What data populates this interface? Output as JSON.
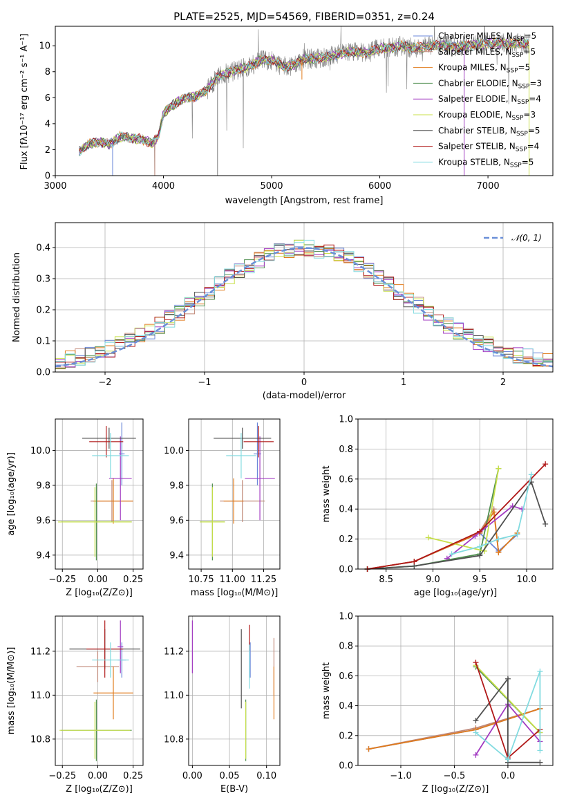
{
  "page": {
    "title": "PLATE=2525, MJD=54569, FIBERID=0351, z=0.24"
  },
  "series_styles": [
    {
      "name": "Chabrier MILES, N_SSP=5",
      "color": "#6a86d8"
    },
    {
      "name": "Salpeter MILES, N_SSP=5",
      "color": "#c08878"
    },
    {
      "name": "Kroupa MILES, N_SSP=5",
      "color": "#e07b1c"
    },
    {
      "name": "Chabrier ELODIE, N_SSP=3",
      "color": "#4f8f4f"
    },
    {
      "name": "Salpeter ELODIE, N_SSP=4",
      "color": "#a23bc2"
    },
    {
      "name": "Kroupa ELODIE, N_SSP=3",
      "color": "#c8e04a"
    },
    {
      "name": "Chabrier STELIB, N_SSP=5",
      "color": "#505050"
    },
    {
      "name": "Salpeter STELIB, N_SSP=4",
      "color": "#b01818"
    },
    {
      "name": "Kroupa STELIB, N_SSP=5",
      "color": "#82dbe0"
    }
  ],
  "chart_data": [
    {
      "id": "spectrum",
      "type": "line",
      "title": "PLATE=2525, MJD=54569, FIBERID=0351, z=0.24",
      "xlabel": "wavelength [Angstrom, rest frame]",
      "ylabel": "Flux [fλ10⁻¹⁷ erg cm⁻² s⁻¹ A⁻¹]",
      "xlim": [
        3000,
        7600
      ],
      "ylim": [
        0,
        11.5
      ],
      "xticks": [
        3000,
        4000,
        5000,
        6000,
        7000
      ],
      "yticks": [
        0,
        2,
        4,
        6,
        8,
        10
      ],
      "legend": {
        "position": "top-right",
        "entries": [
          {
            "pre": "Chabrier MILES, N",
            "sub": "SSP",
            "post": "=5"
          },
          {
            "pre": "Salpeter MILES, N",
            "sub": "SSP",
            "post": "=5"
          },
          {
            "pre": "Kroupa MILES, N",
            "sub": "SSP",
            "post": "=5"
          },
          {
            "pre": "Chabrier ELODIE, N",
            "sub": "SSP",
            "post": "=3"
          },
          {
            "pre": "Salpeter ELODIE, N",
            "sub": "SSP",
            "post": "=4"
          },
          {
            "pre": "Kroupa ELODIE, N",
            "sub": "SSP",
            "post": "=3"
          },
          {
            "pre": "Chabrier STELIB, N",
            "sub": "SSP",
            "post": "=5"
          },
          {
            "pre": "Salpeter STELIB, N",
            "sub": "SSP",
            "post": "=4"
          },
          {
            "pre": "Kroupa STELIB, N",
            "sub": "SSP",
            "post": "=5"
          }
        ]
      },
      "continuum": [
        [
          3220,
          1.8
        ],
        [
          3300,
          2.4
        ],
        [
          3400,
          2.6
        ],
        [
          3500,
          2.4
        ],
        [
          3600,
          3.0
        ],
        [
          3700,
          2.9
        ],
        [
          3800,
          2.8
        ],
        [
          3900,
          2.5
        ],
        [
          3950,
          3.0
        ],
        [
          4000,
          4.8
        ],
        [
          4100,
          5.5
        ],
        [
          4200,
          6.0
        ],
        [
          4300,
          6.1
        ],
        [
          4400,
          6.6
        ],
        [
          4500,
          7.6
        ],
        [
          4600,
          7.9
        ],
        [
          4700,
          8.2
        ],
        [
          4800,
          8.4
        ],
        [
          4900,
          8.9
        ],
        [
          5000,
          8.9
        ],
        [
          5100,
          8.4
        ],
        [
          5200,
          8.5
        ],
        [
          5300,
          9.0
        ],
        [
          5400,
          9.0
        ],
        [
          5500,
          9.1
        ],
        [
          5600,
          9.3
        ],
        [
          5700,
          9.5
        ],
        [
          5800,
          9.5
        ],
        [
          5900,
          9.5
        ],
        [
          6000,
          9.8
        ],
        [
          6100,
          9.8
        ],
        [
          6200,
          10.0
        ],
        [
          6300,
          9.8
        ],
        [
          6400,
          9.9
        ],
        [
          6500,
          10.0
        ],
        [
          6600,
          10.0
        ],
        [
          6700,
          9.9
        ],
        [
          6800,
          10.0
        ],
        [
          6900,
          10.1
        ],
        [
          7000,
          10.2
        ],
        [
          7100,
          10.2
        ],
        [
          7200,
          10.1
        ],
        [
          7300,
          10.2
        ],
        [
          7380,
          10.1
        ]
      ]
    },
    {
      "id": "residual_hist",
      "type": "line",
      "xlabel": "(data-model)/error",
      "ylabel": "Normed distribution",
      "xlim": [
        -2.5,
        2.5
      ],
      "ylim": [
        0,
        0.48
      ],
      "xticks": [
        -2,
        -1,
        0,
        1,
        2
      ],
      "yticks": [
        0.0,
        0.1,
        0.2,
        0.3,
        0.4
      ],
      "legend": {
        "position": "top-right",
        "label": "𝒩(0, 1)"
      },
      "bin_edges_range": [
        -2.5,
        2.5
      ],
      "bins": 50,
      "gaussian": {
        "mean": 0,
        "sigma": 1,
        "color": "#6a8fd8"
      }
    },
    {
      "id": "age_vs_Z",
      "type": "scatter",
      "xlabel": "Z [log₁₀(Z/Z⊙)]",
      "ylabel": "age  [log₁₀(age/yr)]",
      "xlim": [
        -0.3,
        0.32
      ],
      "ylim": [
        9.32,
        10.18
      ],
      "xticks": [
        -0.25,
        0.0,
        0.25
      ],
      "yticks": [
        9.4,
        9.6,
        9.8,
        10.0
      ],
      "points": [
        {
          "s": 0,
          "x": 0.17,
          "y": 9.98,
          "ex": 0.02,
          "ey": 0.18
        },
        {
          "s": 1,
          "x": 0.1,
          "y": 9.71,
          "ex": 0.15,
          "ey": 0.12
        },
        {
          "s": 2,
          "x": 0.11,
          "y": 9.71,
          "ex": 0.14,
          "ey": 0.13
        },
        {
          "s": 3,
          "x": -0.01,
          "y": 9.59,
          "ex": 0.25,
          "ey": 0.22
        },
        {
          "s": 4,
          "x": 0.16,
          "y": 9.84,
          "ex": 0.08,
          "ey": 0.24
        },
        {
          "s": 5,
          "x": -0.02,
          "y": 9.59,
          "ex": 0.26,
          "ey": 0.2
        },
        {
          "s": 6,
          "x": 0.08,
          "y": 10.07,
          "ex": 0.19,
          "ey": 0.06
        },
        {
          "s": 7,
          "x": 0.06,
          "y": 10.05,
          "ex": 0.12,
          "ey": 0.09
        },
        {
          "s": 8,
          "x": 0.09,
          "y": 9.97,
          "ex": 0.13,
          "ey": 0.13
        }
      ]
    },
    {
      "id": "age_vs_mass",
      "type": "scatter",
      "xlabel": "mass [log₁₀(M/M⊙)]",
      "ylabel": "",
      "xlim": [
        10.65,
        11.38
      ],
      "ylim": [
        9.32,
        10.18
      ],
      "xticks": [
        10.75,
        11.0,
        11.25
      ],
      "yticks": [
        9.4,
        9.6,
        9.8,
        10.0
      ],
      "points": [
        {
          "s": 0,
          "x": 11.2,
          "y": 9.98,
          "ex": 0.03,
          "ey": 0.18
        },
        {
          "s": 1,
          "x": 11.08,
          "y": 9.71,
          "ex": 0.18,
          "ey": 0.12
        },
        {
          "s": 2,
          "x": 11.01,
          "y": 9.71,
          "ex": 0.08,
          "ey": 0.13
        },
        {
          "s": 3,
          "x": 10.84,
          "y": 9.59,
          "ex": 0.1,
          "ey": 0.22
        },
        {
          "s": 4,
          "x": 11.22,
          "y": 9.84,
          "ex": 0.12,
          "ey": 0.24
        },
        {
          "s": 5,
          "x": 10.84,
          "y": 9.59,
          "ex": 0.1,
          "ey": 0.2
        },
        {
          "s": 6,
          "x": 11.08,
          "y": 10.07,
          "ex": 0.23,
          "ey": 0.06
        },
        {
          "s": 7,
          "x": 11.21,
          "y": 10.05,
          "ex": 0.12,
          "ey": 0.09
        },
        {
          "s": 8,
          "x": 11.07,
          "y": 9.97,
          "ex": 0.12,
          "ey": 0.13
        }
      ]
    },
    {
      "id": "mass_weight_vs_age",
      "type": "line",
      "xlabel": "age  [log₁₀(age/yr)]",
      "ylabel": "mass weight",
      "xlim": [
        8.2,
        10.28
      ],
      "ylim": [
        0.0,
        1.0
      ],
      "xticks": [
        8.5,
        9.0,
        9.5,
        10.0
      ],
      "yticks": [
        0.0,
        0.2,
        0.4,
        0.6,
        0.8,
        1.0
      ],
      "series": [
        {
          "s": 0,
          "points": [
            [
              8.3,
              0.0
            ],
            [
              8.8,
              0.05
            ],
            [
              9.5,
              0.24
            ],
            [
              9.7,
              0.12
            ],
            [
              9.9,
              0.23
            ]
          ]
        },
        {
          "s": 1,
          "points": [
            [
              8.3,
              0.0
            ],
            [
              8.8,
              0.05
            ],
            [
              9.5,
              0.25
            ],
            [
              9.65,
              0.4
            ],
            [
              9.7,
              0.11
            ]
          ]
        },
        {
          "s": 2,
          "points": [
            [
              8.3,
              0.0
            ],
            [
              8.8,
              0.05
            ],
            [
              9.5,
              0.24
            ],
            [
              9.65,
              0.38
            ],
            [
              9.7,
              0.11
            ],
            [
              9.9,
              0.24
            ]
          ]
        },
        {
          "s": 3,
          "points": [
            [
              8.3,
              0.0
            ],
            [
              8.8,
              0.02
            ],
            [
              9.5,
              0.1
            ],
            [
              9.7,
              0.67
            ]
          ]
        },
        {
          "s": 4,
          "points": [
            [
              9.15,
              0.07
            ],
            [
              9.45,
              0.22
            ],
            [
              9.85,
              0.42
            ],
            [
              9.95,
              0.4
            ]
          ]
        },
        {
          "s": 5,
          "points": [
            [
              8.95,
              0.21
            ],
            [
              9.55,
              0.12
            ],
            [
              9.7,
              0.67
            ]
          ]
        },
        {
          "s": 6,
          "points": [
            [
              8.3,
              0.0
            ],
            [
              8.8,
              0.02
            ],
            [
              9.5,
              0.09
            ],
            [
              10.05,
              0.58
            ],
            [
              10.2,
              0.3
            ]
          ]
        },
        {
          "s": 7,
          "points": [
            [
              8.3,
              0.0
            ],
            [
              8.8,
              0.05
            ],
            [
              9.5,
              0.25
            ],
            [
              10.2,
              0.7
            ]
          ]
        },
        {
          "s": 8,
          "points": [
            [
              9.2,
              0.1
            ],
            [
              9.5,
              0.15
            ],
            [
              9.7,
              0.2
            ],
            [
              9.9,
              0.23
            ],
            [
              10.05,
              0.63
            ]
          ]
        }
      ]
    },
    {
      "id": "mass_vs_Z",
      "type": "scatter",
      "xlabel": "Z [log₁₀(Z/Z⊙)]",
      "ylabel": "mass [log₁₀(M/M⊙)]",
      "xlim": [
        -0.3,
        0.32
      ],
      "ylim": [
        10.68,
        11.36
      ],
      "xticks": [
        -0.25,
        0.0,
        0.25
      ],
      "yticks": [
        10.8,
        11.0,
        11.2
      ],
      "points": [
        {
          "s": 0,
          "x": 0.17,
          "y": 11.16,
          "ex": 0.03,
          "ey": 0.08
        },
        {
          "s": 1,
          "x": 0.0,
          "y": 11.13,
          "ex": 0.15,
          "ey": 0.07
        },
        {
          "s": 2,
          "x": 0.11,
          "y": 11.01,
          "ex": 0.14,
          "ey": 0.12
        },
        {
          "s": 3,
          "x": -0.01,
          "y": 10.84,
          "ex": 0.25,
          "ey": 0.14
        },
        {
          "s": 4,
          "x": 0.16,
          "y": 11.22,
          "ex": 0.02,
          "ey": 0.12
        },
        {
          "s": 5,
          "x": -0.02,
          "y": 10.84,
          "ex": 0.25,
          "ey": 0.13
        },
        {
          "s": 6,
          "x": 0.05,
          "y": 11.21,
          "ex": 0.25,
          "ey": 0.09
        },
        {
          "s": 7,
          "x": 0.05,
          "y": 11.21,
          "ex": 0.13,
          "ey": 0.13
        },
        {
          "s": 8,
          "x": 0.09,
          "y": 11.16,
          "ex": 0.13,
          "ey": 0.08
        }
      ]
    },
    {
      "id": "mass_vs_ebv",
      "type": "scatter",
      "xlabel": "E(B-V)",
      "ylabel": "",
      "xlim": [
        -0.005,
        0.118
      ],
      "ylim": [
        10.68,
        11.36
      ],
      "xticks": [
        0.0,
        0.05,
        0.1
      ],
      "yticks": [
        10.8,
        11.0,
        11.2
      ],
      "points": [
        {
          "s": 0,
          "x": 0.078,
          "y": 11.16,
          "ex": 0,
          "ey": 0.08
        },
        {
          "s": 1,
          "x": 0.11,
          "y": 11.13,
          "ex": 0,
          "ey": 0.13
        },
        {
          "s": 2,
          "x": 0.11,
          "y": 11.01,
          "ex": 0,
          "ey": 0.12
        },
        {
          "s": 3,
          "x": 0.072,
          "y": 10.84,
          "ex": 0,
          "ey": 0.14
        },
        {
          "s": 4,
          "x": 0.0,
          "y": 11.22,
          "ex": 0,
          "ey": 0.12
        },
        {
          "s": 5,
          "x": 0.072,
          "y": 10.84,
          "ex": 0,
          "ey": 0.13
        },
        {
          "s": 6,
          "x": 0.066,
          "y": 11.12,
          "ex": 0,
          "ey": 0.18
        },
        {
          "s": 7,
          "x": 0.077,
          "y": 11.26,
          "ex": 0,
          "ey": 0.06
        },
        {
          "s": 8,
          "x": 0.077,
          "y": 11.13,
          "ex": 0,
          "ey": 0.1
        }
      ]
    },
    {
      "id": "mass_weight_vs_Z",
      "type": "line",
      "xlabel": "Z [log₁₀(Z/Z⊙)]",
      "ylabel": "mass weight",
      "xlim": [
        -1.4,
        0.42
      ],
      "ylim": [
        0.0,
        1.0
      ],
      "xticks": [
        -1.0,
        -0.5,
        0.0
      ],
      "yticks": [
        0.0,
        0.2,
        0.4,
        0.6,
        0.8,
        1.0
      ],
      "series": [
        {
          "s": 0,
          "points": [
            [
              -1.3,
              0.11
            ],
            [
              -0.3,
              0.24
            ],
            [
              0.3,
              0.38
            ]
          ]
        },
        {
          "s": 1,
          "points": [
            [
              -1.3,
              0.11
            ],
            [
              -0.3,
              0.25
            ],
            [
              0.3,
              0.38
            ]
          ]
        },
        {
          "s": 2,
          "points": [
            [
              -1.3,
              0.11
            ],
            [
              -0.3,
              0.24
            ],
            [
              0.3,
              0.38
            ]
          ]
        },
        {
          "s": 3,
          "points": [
            [
              -0.3,
              0.66
            ],
            [
              0.3,
              0.22
            ]
          ]
        },
        {
          "s": 4,
          "points": [
            [
              -0.3,
              0.07
            ],
            [
              0.0,
              0.41
            ],
            [
              0.3,
              0.16
            ]
          ]
        },
        {
          "s": 5,
          "points": [
            [
              -0.3,
              0.67
            ],
            [
              0.3,
              0.22
            ]
          ]
        },
        {
          "s": 6,
          "points": [
            [
              -0.3,
              0.3
            ],
            [
              0.0,
              0.58
            ],
            [
              0.0,
              0.02
            ],
            [
              0.3,
              0.02
            ]
          ]
        },
        {
          "s": 7,
          "points": [
            [
              -0.3,
              0.69
            ],
            [
              0.0,
              0.05
            ],
            [
              0.3,
              0.24
            ]
          ]
        },
        {
          "s": 8,
          "points": [
            [
              -0.3,
              0.22
            ],
            [
              0.0,
              0.04
            ],
            [
              0.3,
              0.63
            ],
            [
              0.3,
              0.1
            ]
          ]
        }
      ]
    }
  ]
}
